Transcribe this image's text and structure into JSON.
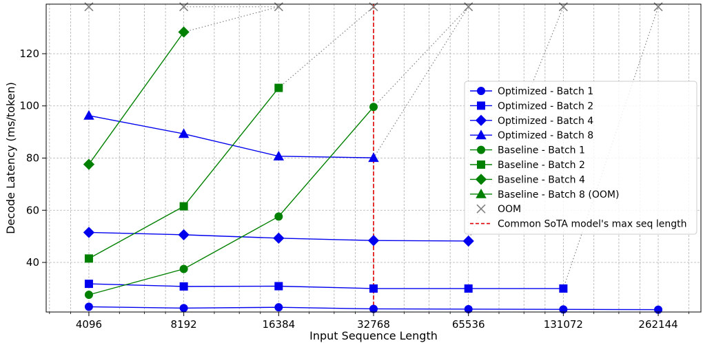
{
  "chart_data": {
    "type": "line",
    "xlabel": "Input Sequence Length",
    "ylabel": "Decode Latency (ms/token)",
    "x_scale": "log2",
    "x": [
      4096,
      8192,
      16384,
      32768,
      65536,
      131072,
      262144
    ],
    "x_tick_labels": [
      "4096",
      "8192",
      "16384",
      "32768",
      "65536",
      "131072",
      "262144"
    ],
    "y_ticks": [
      40,
      60,
      80,
      100,
      120
    ],
    "ylim": [
      21,
      139
    ],
    "grid": true,
    "legend_position": "center-right",
    "series": [
      {
        "name": "Optimized - Batch 1",
        "color": "#0000ee",
        "marker": "circle",
        "points": [
          [
            4096,
            23.0
          ],
          [
            8192,
            22.5
          ],
          [
            16384,
            22.8
          ],
          [
            32768,
            22.2
          ],
          [
            65536,
            22.1
          ],
          [
            131072,
            22.0
          ],
          [
            262144,
            21.9
          ]
        ]
      },
      {
        "name": "Optimized - Batch 2",
        "color": "#0000ee",
        "marker": "square",
        "points": [
          [
            4096,
            31.8
          ],
          [
            8192,
            30.8
          ],
          [
            16384,
            30.9
          ],
          [
            32768,
            30.0
          ],
          [
            65536,
            30.0
          ],
          [
            131072,
            30.0
          ]
        ]
      },
      {
        "name": "Optimized - Batch 4",
        "color": "#0000ee",
        "marker": "diamond",
        "points": [
          [
            4096,
            51.5
          ],
          [
            8192,
            50.6
          ],
          [
            16384,
            49.3
          ],
          [
            32768,
            48.4
          ],
          [
            65536,
            48.2
          ]
        ]
      },
      {
        "name": "Optimized - Batch 8",
        "color": "#0000ee",
        "marker": "triangle",
        "points": [
          [
            4096,
            96.3
          ],
          [
            8192,
            89.3
          ],
          [
            16384,
            80.7
          ],
          [
            32768,
            80.1
          ]
        ]
      },
      {
        "name": "Baseline - Batch 1",
        "color": "#008000",
        "marker": "circle",
        "points": [
          [
            4096,
            27.6
          ],
          [
            8192,
            37.5
          ],
          [
            16384,
            57.6
          ],
          [
            32768,
            99.6
          ]
        ]
      },
      {
        "name": "Baseline - Batch 2",
        "color": "#008000",
        "marker": "square",
        "points": [
          [
            4096,
            41.5
          ],
          [
            8192,
            61.5
          ],
          [
            16384,
            106.9
          ]
        ]
      },
      {
        "name": "Baseline - Batch 4",
        "color": "#008000",
        "marker": "diamond",
        "points": [
          [
            4096,
            77.6
          ],
          [
            8192,
            128.3
          ]
        ]
      },
      {
        "name": "Baseline - Batch 8 (OOM)",
        "color": "#008000",
        "marker": "triangle",
        "points": []
      }
    ],
    "oom": {
      "name": "OOM",
      "color": "#808080",
      "marker": "x",
      "y": 138.0,
      "x_points": [
        4096,
        8192,
        16384,
        32768,
        65536,
        131072,
        262144
      ],
      "dotted_links": [
        [
          [
            8192,
            128.3
          ],
          [
            16384,
            138.0
          ]
        ],
        [
          [
            16384,
            106.9
          ],
          [
            32768,
            138.0
          ]
        ],
        [
          [
            32768,
            99.6
          ],
          [
            65536,
            138.0
          ]
        ],
        [
          [
            32768,
            80.1
          ],
          [
            65536,
            138.0
          ]
        ],
        [
          [
            65536,
            48.2
          ],
          [
            131072,
            138.0
          ]
        ],
        [
          [
            131072,
            30.0
          ],
          [
            262144,
            138.0
          ]
        ],
        [
          [
            8192,
            138.0
          ],
          [
            16384,
            138.0
          ]
        ]
      ]
    },
    "reference_line": {
      "name": "Common SoTA model's max seq length",
      "x": 32768,
      "color": "#dd0000",
      "style": "dashed"
    }
  }
}
